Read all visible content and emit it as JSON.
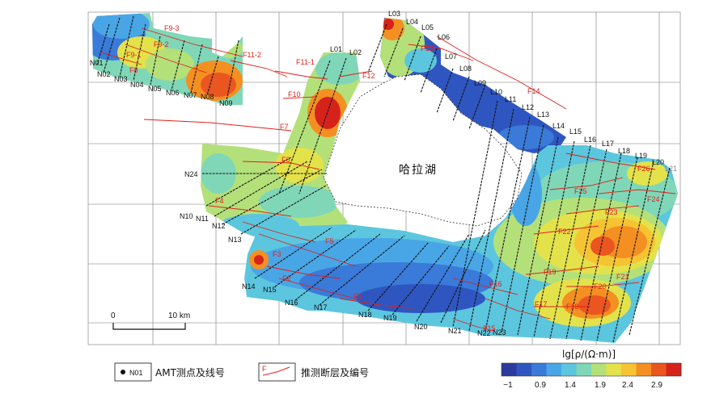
{
  "map": {
    "lake_name": "哈拉湖",
    "scalebar": {
      "start": "0",
      "end": "10 km"
    },
    "fault_labels": [
      "F9-3",
      "F9-2",
      "F9-1",
      "F8",
      "F11-2",
      "F11-1",
      "F12",
      "F13",
      "F14",
      "F10",
      "F7",
      "F6",
      "F5",
      "F4",
      "F3",
      "F2",
      "F1",
      "F16",
      "F17",
      "F18",
      "F19",
      "F20",
      "F21",
      "F22",
      "F23",
      "F24",
      "F25",
      "F26",
      "F15"
    ],
    "line_labels_L": [
      "L01",
      "L02",
      "L03",
      "L04",
      "L05",
      "L06",
      "L07",
      "L08",
      "L09",
      "L10",
      "L11",
      "L12",
      "L13",
      "L14",
      "L15",
      "L16",
      "L17",
      "L18",
      "L19",
      "L20",
      "L21"
    ],
    "line_labels_N": [
      "N01",
      "N02",
      "N03",
      "N04",
      "N05",
      "N06",
      "N07",
      "N08",
      "N09",
      "N10",
      "N11",
      "N12",
      "N13",
      "N14",
      "N15",
      "N16",
      "N17",
      "N18",
      "N19",
      "N20",
      "N21",
      "N22",
      "N23",
      "N24"
    ]
  },
  "legend": {
    "amt_sample": "N01",
    "amt_label": "AMT测点及线号",
    "fault_sample": "F",
    "fault_label": "推测断层及编号",
    "colorbar_title": "lg[ρ/(Ω·m)]",
    "colorbar_ticks": [
      "−1",
      "0.9",
      "1.4",
      "1.9",
      "2.4",
      "2.9"
    ],
    "colorbar_colors": [
      "#2b3a9c",
      "#2f56c0",
      "#3a7ad8",
      "#49a6e6",
      "#5bc6de",
      "#7fd7b8",
      "#b4e07a",
      "#e3e24a",
      "#f6c332",
      "#f48f22",
      "#ea5520",
      "#d5231c"
    ]
  }
}
